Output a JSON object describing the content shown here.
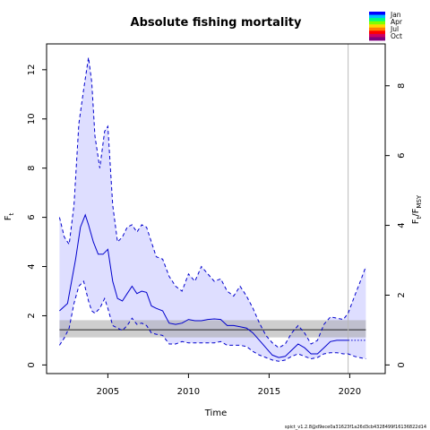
{
  "chart_data": {
    "type": "line",
    "title": "Absolute fishing mortality",
    "xlabel": "Time",
    "ylabel_main": "F",
    "ylabel_main_sub": "t",
    "ylabel_right_main": "F",
    "ylabel_right_sub1": "t",
    "ylabel_right_sep": "/F",
    "ylabel_right_sub2": "MSY",
    "xlim": [
      2001.2,
      2022.2
    ],
    "ylim": [
      -0.35,
      13.05
    ],
    "x_ticks": [
      2005,
      2010,
      2015,
      2020
    ],
    "x_tick_labels": [
      "2005",
      "2010",
      "2015",
      "2020"
    ],
    "y_ticks": [
      0,
      2,
      4,
      6,
      8,
      10,
      12
    ],
    "y_tick_labels": [
      "0",
      "2",
      "4",
      "6",
      "8",
      "10",
      "12"
    ],
    "y2_ticks": [
      0,
      2,
      4,
      6,
      8
    ],
    "y2_tick_labels": [
      "0",
      "2",
      "4",
      "6",
      "8"
    ],
    "fmsy": 1.43,
    "ratio_scale": 0.705,
    "fmsy_band": [
      1.12,
      1.82
    ],
    "fmsy_band_x": [
      2002,
      2021
    ],
    "vertical_line_x": 2019.9,
    "legend": {
      "position": "top-right",
      "labels": [
        "Jan",
        "Apr",
        "Jul",
        "Oct"
      ],
      "colors": [
        "#0000ff",
        "#00bfff",
        "#00ff7f",
        "#7fff00",
        "#ffd700",
        "#ff7f00",
        "#ff0000",
        "#cc0066",
        "#7f007f"
      ]
    },
    "footnote": "spict_v1.2.8@d9ece0a31623f1a26d3cb4328499f16136822d14",
    "series": [
      {
        "role": "estimate",
        "color": "#0000cd",
        "x": [
          2002.0,
          2002.5,
          2003.0,
          2003.3,
          2003.6,
          2003.8,
          2004.1,
          2004.4,
          2004.7,
          2005.0,
          2005.3,
          2005.6,
          2005.9,
          2006.2,
          2006.5,
          2006.8,
          2007.1,
          2007.4,
          2007.7,
          2008.0,
          2008.4,
          2008.8,
          2009.2,
          2009.6,
          2010.0,
          2010.4,
          2010.8,
          2011.2,
          2011.6,
          2012.0,
          2012.4,
          2012.8,
          2013.2,
          2013.6,
          2014.0,
          2014.4,
          2014.8,
          2015.2,
          2015.6,
          2016.0,
          2016.4,
          2016.8,
          2017.2,
          2017.6,
          2018.0,
          2018.4,
          2018.8,
          2019.2,
          2019.6,
          2019.9
        ],
        "values": [
          2.2,
          2.5,
          4.3,
          5.6,
          6.1,
          5.7,
          5.0,
          4.5,
          4.5,
          4.7,
          3.4,
          2.7,
          2.6,
          2.9,
          3.2,
          2.9,
          3.0,
          2.95,
          2.4,
          2.3,
          2.2,
          1.7,
          1.65,
          1.7,
          1.85,
          1.8,
          1.8,
          1.85,
          1.87,
          1.85,
          1.6,
          1.6,
          1.55,
          1.5,
          1.3,
          1.0,
          0.7,
          0.4,
          0.3,
          0.35,
          0.6,
          0.85,
          0.7,
          0.45,
          0.45,
          0.7,
          0.95,
          1.0,
          1.0,
          1.0
        ]
      },
      {
        "role": "forecast",
        "color": "#0000cd",
        "dashed": true,
        "x": [
          2019.9,
          2021.0
        ],
        "values": [
          1.0,
          1.0
        ]
      },
      {
        "role": "upper-ci",
        "color": "#0000cd",
        "dashed": true,
        "x": [
          2002.0,
          2002.3,
          2002.6,
          2002.9,
          2003.2,
          2003.5,
          2003.8,
          2004.0,
          2004.2,
          2004.5,
          2004.8,
          2005.0,
          2005.3,
          2005.6,
          2005.9,
          2006.2,
          2006.5,
          2006.8,
          2007.1,
          2007.4,
          2007.7,
          2008.0,
          2008.4,
          2008.8,
          2009.2,
          2009.6,
          2010.0,
          2010.4,
          2010.8,
          2011.2,
          2011.6,
          2012.0,
          2012.4,
          2012.8,
          2013.2,
          2013.6,
          2014.0,
          2014.4,
          2014.8,
          2015.2,
          2015.6,
          2016.0,
          2016.4,
          2016.8,
          2017.2,
          2017.6,
          2018.0,
          2018.4,
          2018.8,
          2019.2,
          2019.6,
          2019.9,
          2020.3,
          2020.6,
          2021.0
        ],
        "values": [
          6.0,
          5.2,
          4.9,
          6.5,
          9.8,
          11.2,
          12.5,
          11.5,
          9.3,
          8.0,
          9.5,
          9.7,
          6.5,
          5.0,
          5.2,
          5.6,
          5.7,
          5.4,
          5.7,
          5.6,
          5.0,
          4.4,
          4.3,
          3.6,
          3.2,
          3.0,
          3.7,
          3.4,
          4.0,
          3.7,
          3.4,
          3.5,
          3.0,
          2.8,
          3.2,
          2.8,
          2.3,
          1.7,
          1.2,
          0.9,
          0.7,
          0.85,
          1.3,
          1.6,
          1.3,
          0.85,
          1.0,
          1.65,
          1.95,
          1.9,
          1.85,
          2.1,
          2.8,
          3.3,
          4.0
        ]
      },
      {
        "role": "lower-ci",
        "color": "#0000cd",
        "dashed": true,
        "x": [
          2002.0,
          2002.3,
          2002.6,
          2002.9,
          2003.2,
          2003.5,
          2003.8,
          2004.0,
          2004.2,
          2004.5,
          2004.8,
          2005.0,
          2005.3,
          2005.6,
          2005.9,
          2006.2,
          2006.5,
          2006.8,
          2007.1,
          2007.4,
          2007.7,
          2008.0,
          2008.4,
          2008.8,
          2009.2,
          2009.6,
          2010.0,
          2010.4,
          2010.8,
          2011.2,
          2011.6,
          2012.0,
          2012.4,
          2012.8,
          2013.2,
          2013.6,
          2014.0,
          2014.4,
          2014.8,
          2015.2,
          2015.6,
          2016.0,
          2016.4,
          2016.8,
          2017.2,
          2017.6,
          2018.0,
          2018.4,
          2018.8,
          2019.2,
          2019.6,
          2019.9,
          2020.3,
          2020.6,
          2021.0
        ],
        "values": [
          0.8,
          1.1,
          1.5,
          2.5,
          3.2,
          3.4,
          2.6,
          2.2,
          2.1,
          2.3,
          2.7,
          2.3,
          1.6,
          1.5,
          1.4,
          1.6,
          1.9,
          1.65,
          1.7,
          1.6,
          1.3,
          1.25,
          1.2,
          0.85,
          0.85,
          0.95,
          0.9,
          0.9,
          0.9,
          0.9,
          0.9,
          0.95,
          0.8,
          0.8,
          0.8,
          0.75,
          0.55,
          0.4,
          0.3,
          0.2,
          0.15,
          0.2,
          0.35,
          0.45,
          0.35,
          0.25,
          0.3,
          0.45,
          0.5,
          0.5,
          0.45,
          0.45,
          0.35,
          0.3,
          0.25
        ]
      }
    ]
  }
}
